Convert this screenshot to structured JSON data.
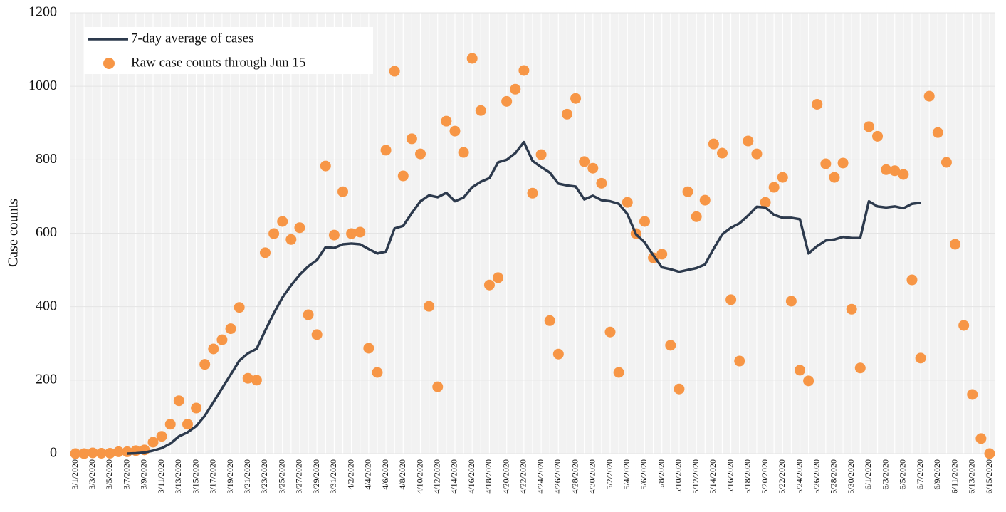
{
  "chart_data": {
    "type": "line",
    "y_label": "Case counts",
    "categories": [
      "3/1/2020",
      null,
      "3/3/2020",
      null,
      "3/5/2020",
      null,
      "3/7/2020",
      null,
      "3/9/2020",
      null,
      "3/11/2020",
      null,
      "3/13/2020",
      null,
      "3/15/2020",
      null,
      "3/17/2020",
      null,
      "3/19/2020",
      null,
      "3/21/2020",
      null,
      "3/23/2020",
      null,
      "3/25/2020",
      null,
      "3/27/2020",
      null,
      "3/29/2020",
      null,
      "3/31/2020",
      null,
      "4/2/2020",
      null,
      "4/4/2020",
      null,
      "4/6/2020",
      null,
      "4/8/2020",
      null,
      "4/10/2020",
      null,
      "4/12/2020",
      null,
      "4/14/2020",
      null,
      "4/16/2020",
      null,
      "4/18/2020",
      null,
      "4/20/2020",
      null,
      "4/22/2020",
      null,
      "4/24/2020",
      null,
      "4/26/2020",
      null,
      "4/28/2020",
      null,
      "4/30/2020",
      null,
      "5/2/2020",
      null,
      "5/4/2020",
      null,
      "5/6/2020",
      null,
      "5/8/2020",
      null,
      "5/10/2020",
      null,
      "5/12/2020",
      null,
      "5/14/2020",
      null,
      "5/16/2020",
      null,
      "5/18/2020",
      null,
      "5/20/2020",
      null,
      "5/22/2020",
      null,
      "5/24/2020",
      null,
      "5/26/2020",
      null,
      "5/28/2020",
      null,
      "5/30/2020",
      null,
      "6/1/2020",
      null,
      "6/3/2020",
      null,
      "6/5/2020",
      null,
      "6/7/2020",
      null,
      "6/9/2020",
      null,
      "6/11/2020",
      null,
      "6/13/2020",
      null,
      "6/15/2020"
    ],
    "series": [
      {
        "name": "7-day average of cases",
        "type": "line",
        "color": "#2d3a4d",
        "values": [
          null,
          null,
          null,
          null,
          null,
          null,
          0,
          1,
          3,
          8,
          15,
          27,
          47,
          58,
          75,
          103,
          140,
          178,
          215,
          253,
          273,
          285,
          335,
          382,
          425,
          458,
          487,
          510,
          527,
          562,
          560,
          570,
          572,
          570,
          557,
          545,
          550,
          613,
          620,
          655,
          687,
          703,
          698,
          710,
          687,
          697,
          725,
          740,
          750,
          793,
          800,
          818,
          848,
          797,
          780,
          765,
          735,
          730,
          727,
          692,
          702,
          690,
          687,
          680,
          652,
          597,
          575,
          540,
          507,
          502,
          495,
          500,
          505,
          515,
          558,
          597,
          615,
          627,
          648,
          672,
          670,
          650,
          642,
          642,
          638,
          545,
          565,
          580,
          583,
          590,
          587,
          587,
          687,
          673,
          670,
          673,
          668,
          680,
          683,
          null,
          null,
          null,
          null,
          null,
          null,
          null,
          null
        ]
      },
      {
        "name": "Raw case counts through Jun 15",
        "type": "scatter",
        "color": "#f79646",
        "values": [
          0,
          0,
          2,
          1,
          1,
          5,
          5,
          8,
          10,
          31,
          47,
          80,
          144,
          80,
          124,
          243,
          285,
          310,
          340,
          398,
          205,
          200,
          547,
          599,
          632,
          583,
          615,
          378,
          324,
          783,
          595,
          713,
          599,
          603,
          287,
          221,
          826,
          1041,
          756,
          857,
          816,
          401,
          182,
          905,
          878,
          820,
          1076,
          934,
          459,
          479,
          959,
          992,
          1043,
          709,
          814,
          362,
          271,
          924,
          967,
          795,
          777,
          736,
          331,
          221,
          684,
          599,
          632,
          533,
          543,
          295,
          176,
          713,
          645,
          690,
          843,
          818,
          419,
          252,
          851,
          816,
          684,
          725,
          752,
          415,
          227,
          198,
          951,
          789,
          752,
          791,
          393,
          233,
          890,
          864,
          773,
          770,
          760,
          473,
          260,
          973,
          874,
          793,
          570,
          349,
          161,
          41,
          0
        ]
      }
    ],
    "ylim": [
      0,
      1200
    ],
    "yticks": [
      0,
      200,
      400,
      600,
      800,
      1000,
      1200
    ],
    "grid": true,
    "legend": "upper left"
  }
}
